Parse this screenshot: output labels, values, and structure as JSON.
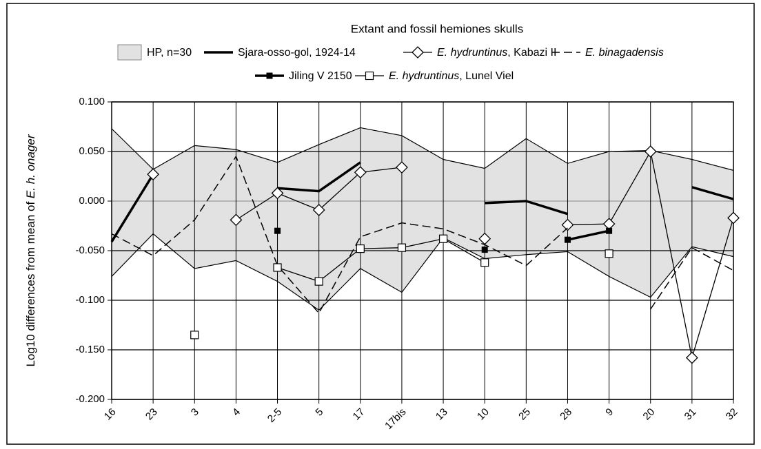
{
  "chart_data": {
    "type": "line",
    "title": "Extant and fossil hemiones skulls",
    "y_label": "Log10 differences from mean of E. h. onager",
    "categories": [
      "16",
      "23",
      "3",
      "4",
      "2-5",
      "5",
      "17",
      "17bis",
      "13",
      "10",
      "25",
      "28",
      "9",
      "20",
      "31",
      "32"
    ],
    "band": {
      "name": "HP, n=30",
      "color": "#e2e2e2",
      "upper": [
        0.073,
        0.032,
        0.056,
        0.052,
        0.039,
        0.057,
        0.074,
        0.066,
        0.042,
        0.033,
        0.063,
        0.038,
        0.05,
        0.051,
        0.042,
        0.031
      ],
      "lower": [
        -0.076,
        -0.033,
        -0.068,
        -0.06,
        -0.081,
        -0.11,
        -0.068,
        -0.092,
        -0.037,
        -0.058,
        -0.054,
        -0.051,
        -0.076,
        -0.097,
        -0.046,
        -0.056
      ]
    },
    "series": [
      {
        "name": "Sjara-osso-gol, 1924-14",
        "color": "#000000",
        "line_width": 3.5,
        "dash": "none",
        "marker": "none",
        "values": [
          -0.041,
          0.027,
          null,
          null,
          0.013,
          0.01,
          0.039,
          null,
          null,
          -0.002,
          0.0,
          -0.013,
          null,
          null,
          0.014,
          0.002
        ]
      },
      {
        "name": "E. hydruntinus, Kabazi II",
        "color": "#000000",
        "line_width": 1.3,
        "dash": "none",
        "marker": "diamond",
        "values": [
          null,
          0.027,
          null,
          -0.019,
          0.008,
          -0.009,
          0.029,
          0.034,
          null,
          -0.038,
          null,
          -0.024,
          -0.023,
          0.05,
          -0.158,
          -0.017
        ]
      },
      {
        "name": "E. binagadensis",
        "color": "#000000",
        "line_width": 1.5,
        "dash": "12 6",
        "marker": "none",
        "values": [
          -0.033,
          -0.055,
          -0.019,
          0.045,
          -0.065,
          -0.113,
          -0.036,
          -0.022,
          -0.028,
          -0.044,
          -0.065,
          -0.027,
          null,
          -0.109,
          -0.047,
          -0.07
        ]
      },
      {
        "name": "Jiling V 2150",
        "color": "#000000",
        "line_width": 3.5,
        "dash": "none",
        "marker": "filled-square",
        "values": [
          null,
          null,
          null,
          null,
          -0.03,
          null,
          null,
          null,
          null,
          -0.049,
          null,
          -0.039,
          -0.03,
          null,
          null,
          null
        ]
      },
      {
        "name": "E. hydruntinus, Lunel Viel",
        "color": "#000000",
        "line_width": 1.3,
        "dash": "none",
        "marker": "open-square",
        "values": [
          null,
          null,
          -0.135,
          null,
          -0.067,
          -0.081,
          -0.048,
          -0.047,
          -0.038,
          -0.062,
          null,
          null,
          -0.053,
          null,
          null,
          null
        ]
      }
    ],
    "ylim": [
      -0.2,
      0.1
    ],
    "yticks": [
      {
        "value": -0.2,
        "label": "-0.200"
      },
      {
        "value": -0.15,
        "label": "-0.150"
      },
      {
        "value": -0.1,
        "label": "-0.100"
      },
      {
        "value": -0.05,
        "label": "-0.050"
      },
      {
        "value": 0,
        "label": "0.000"
      },
      {
        "value": 0.05,
        "label": "0.050"
      },
      {
        "value": 0.1,
        "label": "0.100"
      }
    ],
    "grid": true
  }
}
